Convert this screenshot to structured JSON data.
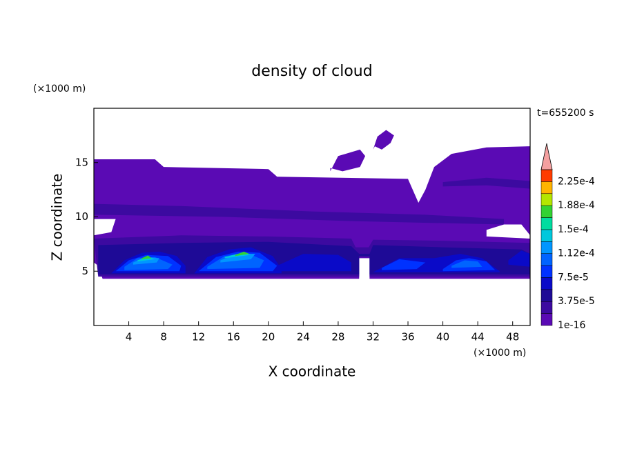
{
  "chart_data": {
    "type": "contour",
    "title": "density of cloud",
    "time_label": "t=655200 s",
    "x_label": "X coordinate",
    "y_label": "Z coordinate",
    "x_unit": "(×1000 m)",
    "y_unit": "(×1000 m)",
    "xlim": [
      0,
      50
    ],
    "ylim": [
      0,
      20
    ],
    "xticks": [
      4,
      8,
      12,
      16,
      20,
      24,
      28,
      32,
      36,
      40,
      44,
      48
    ],
    "yticks": [
      5,
      10,
      15
    ],
    "levels": [
      1e-16,
      1.875e-05,
      3.75e-05,
      5.625e-05,
      7.5e-05,
      9.375e-05,
      0.0001125,
      0.00013125,
      0.00015,
      0.00016875,
      0.0001875,
      0.00020625,
      0.000225,
      0.00024375
    ],
    "colors": [
      "#5a0ab4",
      "#3c0aa0",
      "#1e0a96",
      "#0a0ac8",
      "#0032ff",
      "#0064ff",
      "#0096ff",
      "#00c8dc",
      "#00dca0",
      "#32d232",
      "#b4e600",
      "#ffb400",
      "#ff3c00"
    ],
    "extend_color": "#f4a0a0",
    "colorbar_ticks": [
      1e-16,
      {
        "value": 3.75e-05,
        "label": "3.75e-5"
      },
      {
        "value": 7.5e-05,
        "label": "7.5e-5"
      },
      {
        "value": 0.0001125,
        "label": "1.12e-4"
      },
      {
        "value": 0.00015,
        "label": "1.5e-4"
      },
      {
        "value": 0.0001875,
        "label": "1.88e-4"
      },
      {
        "value": 0.000225,
        "label": "2.25e-4"
      }
    ],
    "regions": [
      {
        "level": 0,
        "x": [
          0,
          7,
          8,
          20,
          21,
          36,
          37.2,
          38,
          39,
          41,
          45,
          50,
          50,
          49,
          47,
          45,
          45,
          50,
          50,
          31.6,
          31.6,
          30.4,
          30.4,
          1,
          0.5,
          0,
          0,
          2,
          2.5,
          0
        ],
        "z": [
          15.3,
          15.3,
          14.6,
          14.4,
          13.7,
          13.5,
          11.3,
          12.5,
          14.6,
          15.8,
          16.4,
          16.5,
          8.3,
          9.3,
          9.3,
          8.8,
          8.2,
          8.0,
          4.3,
          4.3,
          6.2,
          6.2,
          4.3,
          4.3,
          5.5,
          5.8,
          8.3,
          8.6,
          9.8,
          9.8
        ]
      },
      {
        "level": 0,
        "x": [
          27.1,
          28,
          30.5,
          31.1,
          30.5,
          28.5,
          27.1
        ],
        "z": [
          14.2,
          15.6,
          16.2,
          15.6,
          14.6,
          14.2,
          14.5
        ]
      },
      {
        "level": 0,
        "x": [
          32,
          32.5,
          33.5,
          34.4,
          34,
          33,
          32.2
        ],
        "z": [
          16.2,
          17.4,
          18.0,
          17.5,
          16.8,
          16.2,
          16.5
        ]
      },
      {
        "level": 1,
        "x": [
          40,
          45,
          50,
          50,
          45,
          40
        ],
        "z": [
          13.2,
          13.6,
          13.3,
          12.6,
          12.9,
          12.8
        ]
      },
      {
        "level": 1,
        "x": [
          0,
          10,
          25,
          38,
          47,
          47,
          30,
          15,
          0
        ],
        "z": [
          11.2,
          11.0,
          10.5,
          10.2,
          9.8,
          9.3,
          9.6,
          10.0,
          10.2
        ]
      },
      {
        "level": 1,
        "x": [
          0,
          10,
          20,
          29.5,
          30,
          31.5,
          32,
          40,
          50,
          50,
          31.6,
          31.6,
          30.4,
          30.4,
          0.5
        ],
        "z": [
          8.0,
          8.3,
          8.2,
          8.0,
          7.2,
          7.2,
          7.9,
          7.8,
          7.6,
          4.5,
          4.5,
          6.3,
          6.3,
          4.5,
          4.5
        ]
      },
      {
        "level": 2,
        "x": [
          0.5,
          10,
          20,
          29.5,
          30.4,
          31.6,
          32,
          40,
          49,
          50,
          50,
          31.6,
          31.6,
          30.4,
          30.4,
          0.5
        ],
        "z": [
          7.4,
          7.6,
          7.7,
          7.3,
          6.6,
          6.6,
          7.4,
          7.2,
          7.0,
          6.6,
          4.7,
          4.7,
          6.4,
          6.4,
          4.7,
          4.7
        ]
      },
      {
        "level": 3,
        "x": [
          2,
          3.5,
          5.5,
          7.5,
          9.5,
          10.5,
          10.5,
          2
        ],
        "z": [
          4.8,
          6.0,
          6.7,
          6.8,
          6.4,
          5.5,
          4.8,
          4.8
        ]
      },
      {
        "level": 3,
        "x": [
          11.5,
          13,
          15.5,
          18,
          20.5,
          21.5,
          21.5,
          11.5
        ],
        "z": [
          4.8,
          6.3,
          7.0,
          7.2,
          6.4,
          5.2,
          4.8,
          4.8
        ]
      },
      {
        "level": 3,
        "x": [
          21,
          24,
          28,
          29.5,
          29.5,
          21
        ],
        "z": [
          5.5,
          6.6,
          6.5,
          5.8,
          5.0,
          5.0
        ]
      },
      {
        "level": 3,
        "x": [
          32,
          35,
          39,
          42,
          44.5,
          46.5,
          46.5,
          32
        ],
        "z": [
          4.9,
          6.2,
          6.2,
          6.6,
          6.2,
          5.0,
          4.9,
          4.9
        ]
      },
      {
        "level": 3,
        "x": [
          47.5,
          49,
          50,
          50,
          47.5
        ],
        "z": [
          6.0,
          6.9,
          6.6,
          5.4,
          5.6
        ]
      },
      {
        "level": 4,
        "x": [
          2.5,
          4,
          6,
          8.5,
          10,
          9.8,
          2.5
        ],
        "z": [
          5.0,
          6.0,
          6.5,
          6.4,
          5.5,
          5.0,
          5.0
        ]
      },
      {
        "level": 4,
        "x": [
          12,
          14,
          16.5,
          19,
          21,
          20.5,
          12
        ],
        "z": [
          5.0,
          6.3,
          6.8,
          6.7,
          5.5,
          5.0,
          5.0
        ]
      },
      {
        "level": 4,
        "x": [
          40,
          41.5,
          43,
          45,
          46,
          40
        ],
        "z": [
          5.2,
          6.0,
          6.2,
          5.9,
          5.1,
          5.0
        ]
      },
      {
        "level": 4,
        "x": [
          33,
          35,
          38,
          37,
          33
        ],
        "z": [
          5.3,
          6.1,
          5.8,
          5.2,
          5.1
        ]
      },
      {
        "level": 5,
        "x": [
          3.5,
          5,
          7,
          9,
          8.5,
          3.5
        ],
        "z": [
          5.4,
          6.2,
          6.3,
          5.6,
          5.2,
          5.1
        ]
      },
      {
        "level": 5,
        "x": [
          13,
          15,
          17.5,
          19.5,
          19,
          13
        ],
        "z": [
          5.4,
          6.4,
          6.7,
          6.0,
          5.3,
          5.2
        ]
      },
      {
        "level": 5,
        "x": [
          41,
          42.5,
          44,
          44.5,
          41
        ],
        "z": [
          5.5,
          6.0,
          5.9,
          5.4,
          5.3
        ]
      },
      {
        "level": 6,
        "x": [
          4.5,
          6,
          7.5,
          7.2,
          4.5
        ],
        "z": [
          5.8,
          6.3,
          6.2,
          5.8,
          5.6
        ]
      },
      {
        "level": 6,
        "x": [
          14.5,
          16.5,
          18.5,
          18,
          14.5
        ],
        "z": [
          6.0,
          6.6,
          6.6,
          6.1,
          5.8
        ]
      },
      {
        "level": 7,
        "x": [
          5,
          6.2,
          7,
          5
        ],
        "z": [
          6.0,
          6.35,
          6.1,
          5.9
        ]
      },
      {
        "level": 7,
        "x": [
          15,
          17,
          18,
          15
        ],
        "z": [
          6.3,
          6.7,
          6.5,
          6.2
        ]
      },
      {
        "level": 9,
        "x": [
          5.5,
          6.2,
          6.6,
          5.5
        ],
        "z": [
          6.2,
          6.45,
          6.2,
          6.1
        ]
      },
      {
        "level": 9,
        "x": [
          16.2,
          17.2,
          17.8,
          16.2
        ],
        "z": [
          6.5,
          6.8,
          6.6,
          6.4
        ]
      }
    ]
  }
}
